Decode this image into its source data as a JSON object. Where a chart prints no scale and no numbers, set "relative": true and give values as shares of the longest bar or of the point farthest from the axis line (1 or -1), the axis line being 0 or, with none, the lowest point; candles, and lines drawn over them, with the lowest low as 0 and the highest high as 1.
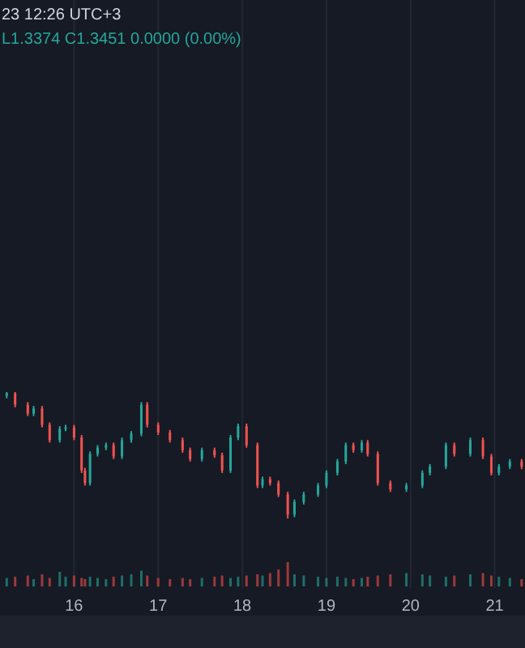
{
  "chart_data": [
    {
      "type": "candlestick",
      "relative": true,
      "tick_labels": false,
      "grid": "x",
      "xlim": [
        15.12,
        21.36
      ],
      "xticks": [
        16,
        17,
        18,
        19,
        20,
        21
      ],
      "annotations": [
        "23 12:26 UTC+3",
        "L1.3374 C1.3451 0.0000 (0.00%)"
      ],
      "x": [
        15.2,
        15.3,
        15.45,
        15.52,
        15.62,
        15.71,
        15.83,
        15.9,
        16.0,
        16.09,
        16.13,
        16.19,
        16.28,
        16.38,
        16.47,
        16.57,
        16.68,
        16.8,
        16.87,
        17.0,
        17.14,
        17.29,
        17.38,
        17.52,
        17.67,
        17.76,
        17.86,
        17.95,
        18.05,
        18.18,
        18.24,
        18.33,
        18.43,
        18.54,
        18.62,
        18.73,
        18.9,
        19.0,
        19.13,
        19.23,
        19.32,
        19.42,
        19.49,
        19.61,
        19.76,
        19.95,
        20.14,
        20.23,
        20.42,
        20.52,
        20.71,
        20.86,
        20.96,
        21.05,
        21.18,
        21.32
      ],
      "ohlc": [
        [
          0.97,
          1,
          0.95,
          0.99
        ],
        [
          0.99,
          1,
          0.88,
          0.9
        ],
        [
          0.9,
          0.92,
          0.81,
          0.83
        ],
        [
          0.83,
          0.89,
          0.81,
          0.87
        ],
        [
          0.87,
          0.89,
          0.72,
          0.74
        ],
        [
          0.74,
          0.76,
          0.6,
          0.62
        ],
        [
          0.62,
          0.73,
          0.6,
          0.71
        ],
        [
          0.71,
          0.74,
          0.69,
          0.72
        ],
        [
          0.72,
          0.74,
          0.62,
          0.64
        ],
        [
          0.64,
          0.66,
          0.36,
          0.38
        ],
        [
          0.38,
          0.4,
          0.26,
          0.28
        ],
        [
          0.28,
          0.53,
          0.26,
          0.51
        ],
        [
          0.51,
          0.58,
          0.49,
          0.56
        ],
        [
          0.56,
          0.6,
          0.54,
          0.58
        ],
        [
          0.58,
          0.6,
          0.47,
          0.49
        ],
        [
          0.49,
          0.64,
          0.47,
          0.62
        ],
        [
          0.62,
          0.69,
          0.6,
          0.67
        ],
        [
          0.67,
          0.92,
          0.65,
          0.9
        ],
        [
          0.9,
          0.92,
          0.72,
          0.74
        ],
        [
          0.74,
          0.76,
          0.66,
          0.68
        ],
        [
          0.68,
          0.7,
          0.6,
          0.62
        ],
        [
          0.62,
          0.64,
          0.52,
          0.54
        ],
        [
          0.54,
          0.56,
          0.45,
          0.47
        ],
        [
          0.47,
          0.56,
          0.45,
          0.54
        ],
        [
          0.54,
          0.56,
          0.48,
          0.5
        ],
        [
          0.5,
          0.52,
          0.36,
          0.38
        ],
        [
          0.38,
          0.66,
          0.36,
          0.64
        ],
        [
          0.64,
          0.75,
          0.62,
          0.73
        ],
        [
          0.73,
          0.75,
          0.56,
          0.58
        ],
        [
          0.58,
          0.6,
          0.24,
          0.26
        ],
        [
          0.26,
          0.33,
          0.24,
          0.31
        ],
        [
          0.31,
          0.33,
          0.26,
          0.28
        ],
        [
          0.28,
          0.3,
          0.17,
          0.19
        ],
        [
          0.19,
          0.21,
          0,
          0.03
        ],
        [
          0.03,
          0.15,
          0.01,
          0.13
        ],
        [
          0.13,
          0.21,
          0.11,
          0.19
        ],
        [
          0.19,
          0.28,
          0.17,
          0.26
        ],
        [
          0.26,
          0.38,
          0.24,
          0.36
        ],
        [
          0.36,
          0.47,
          0.34,
          0.45
        ],
        [
          0.45,
          0.6,
          0.43,
          0.58
        ],
        [
          0.58,
          0.6,
          0.52,
          0.54
        ],
        [
          0.54,
          0.62,
          0.52,
          0.6
        ],
        [
          0.6,
          0.62,
          0.49,
          0.51
        ],
        [
          0.51,
          0.53,
          0.26,
          0.28
        ],
        [
          0.28,
          0.3,
          0.21,
          0.23
        ],
        [
          0.23,
          0.28,
          0.21,
          0.26
        ],
        [
          0.26,
          0.38,
          0.24,
          0.36
        ],
        [
          0.36,
          0.43,
          0.34,
          0.41
        ],
        [
          0.41,
          0.6,
          0.39,
          0.58
        ],
        [
          0.58,
          0.6,
          0.49,
          0.51
        ],
        [
          0.51,
          0.64,
          0.49,
          0.62
        ],
        [
          0.62,
          0.64,
          0.47,
          0.49
        ],
        [
          0.49,
          0.51,
          0.34,
          0.36
        ],
        [
          0.36,
          0.43,
          0.34,
          0.41
        ],
        [
          0.41,
          0.47,
          0.39,
          0.45
        ],
        [
          0.45,
          0.47,
          0.39,
          0.41
        ]
      ],
      "colors": [
        "#26a69a",
        "#ef5350",
        "#ef5350",
        "#26a69a",
        "#ef5350",
        "#ef5350",
        "#26a69a",
        "#26a69a",
        "#ef5350",
        "#ef5350",
        "#ef5350",
        "#26a69a",
        "#26a69a",
        "#26a69a",
        "#ef5350",
        "#26a69a",
        "#26a69a",
        "#26a69a",
        "#ef5350",
        "#ef5350",
        "#ef5350",
        "#ef5350",
        "#ef5350",
        "#26a69a",
        "#ef5350",
        "#ef5350",
        "#26a69a",
        "#26a69a",
        "#ef5350",
        "#ef5350",
        "#26a69a",
        "#ef5350",
        "#ef5350",
        "#ef5350",
        "#26a69a",
        "#26a69a",
        "#26a69a",
        "#26a69a",
        "#26a69a",
        "#26a69a",
        "#ef5350",
        "#26a69a",
        "#ef5350",
        "#ef5350",
        "#ef5350",
        "#26a69a",
        "#26a69a",
        "#26a69a",
        "#26a69a",
        "#ef5350",
        "#26a69a",
        "#ef5350",
        "#ef5350",
        "#26a69a",
        "#26a69a",
        "#ef5350"
      ]
    },
    {
      "type": "bar",
      "relative": true,
      "grid": "x",
      "xlim": [
        15.12,
        21.36
      ],
      "xticks": [
        16,
        17,
        18,
        19,
        20,
        21
      ],
      "x": [
        15.2,
        15.3,
        15.45,
        15.52,
        15.62,
        15.71,
        15.83,
        15.9,
        16.0,
        16.09,
        16.13,
        16.19,
        16.28,
        16.38,
        16.47,
        16.57,
        16.68,
        16.8,
        16.87,
        17.0,
        17.14,
        17.29,
        17.38,
        17.52,
        17.67,
        17.76,
        17.86,
        17.95,
        18.05,
        18.18,
        18.24,
        18.33,
        18.43,
        18.54,
        18.62,
        18.73,
        18.9,
        19.0,
        19.13,
        19.23,
        19.32,
        19.42,
        19.49,
        19.61,
        19.76,
        19.95,
        20.14,
        20.23,
        20.42,
        20.52,
        20.71,
        20.86,
        20.96,
        21.05,
        21.18,
        21.32
      ],
      "values": [
        0.35,
        0.4,
        0.45,
        0.3,
        0.5,
        0.35,
        0.6,
        0.4,
        0.45,
        0.35,
        0.3,
        0.4,
        0.35,
        0.3,
        0.4,
        0.45,
        0.5,
        0.65,
        0.45,
        0.35,
        0.3,
        0.35,
        0.3,
        0.35,
        0.4,
        0.45,
        0.35,
        0.4,
        0.45,
        0.5,
        0.45,
        0.55,
        0.7,
        1,
        0.5,
        0.45,
        0.4,
        0.35,
        0.4,
        0.35,
        0.3,
        0.35,
        0.4,
        0.45,
        0.5,
        0.55,
        0.5,
        0.45,
        0.4,
        0.45,
        0.5,
        0.55,
        0.45,
        0.4,
        0.35,
        0.3
      ],
      "colors": [
        "#1e6f69",
        "#9b3a3b",
        "#9b3a3b",
        "#1e6f69",
        "#9b3a3b",
        "#9b3a3b",
        "#1e6f69",
        "#1e6f69",
        "#9b3a3b",
        "#9b3a3b",
        "#9b3a3b",
        "#1e6f69",
        "#1e6f69",
        "#1e6f69",
        "#9b3a3b",
        "#1e6f69",
        "#1e6f69",
        "#1e6f69",
        "#9b3a3b",
        "#9b3a3b",
        "#9b3a3b",
        "#9b3a3b",
        "#9b3a3b",
        "#1e6f69",
        "#9b3a3b",
        "#9b3a3b",
        "#1e6f69",
        "#1e6f69",
        "#9b3a3b",
        "#9b3a3b",
        "#1e6f69",
        "#9b3a3b",
        "#9b3a3b",
        "#9b3a3b",
        "#1e6f69",
        "#1e6f69",
        "#1e6f69",
        "#1e6f69",
        "#1e6f69",
        "#1e6f69",
        "#9b3a3b",
        "#1e6f69",
        "#9b3a3b",
        "#9b3a3b",
        "#9b3a3b",
        "#1e6f69",
        "#1e6f69",
        "#1e6f69",
        "#1e6f69",
        "#9b3a3b",
        "#1e6f69",
        "#9b3a3b",
        "#9b3a3b",
        "#1e6f69",
        "#1e6f69",
        "#9b3a3b"
      ]
    }
  ]
}
